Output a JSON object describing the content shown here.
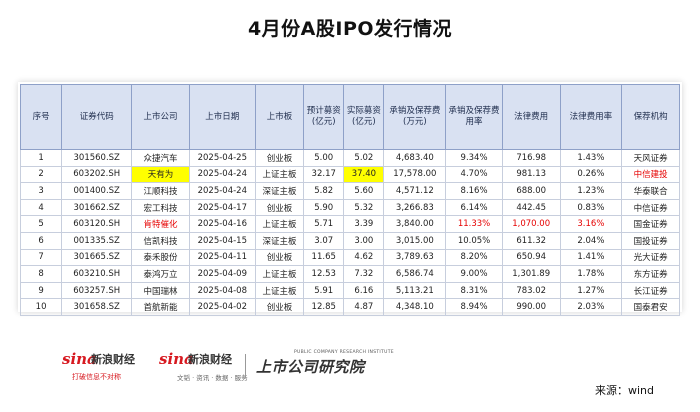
{
  "title": "4月份A股IPO发行情况",
  "table": {
    "headers": [
      "序号",
      "证券代码",
      "上市公司",
      "上市日期",
      "上市板",
      "预计募资\n(亿元)",
      "实际募资\n(亿元)",
      "承销及保荐费\n(万元)",
      "承销及保荐费\n用率",
      "法律费用",
      "法律费用率",
      "保荐机构"
    ],
    "rows": [
      [
        "1",
        "301560.SZ",
        "众捷汽车",
        "2025-04-25",
        "创业板",
        "5.00",
        "5.02",
        "4,683.40",
        "9.34%",
        "716.98",
        "1.43%",
        "天风证券"
      ],
      [
        "2",
        "603202.SH",
        "天有为",
        "2025-04-24",
        "上证主板",
        "32.17",
        "37.40",
        "17,578.00",
        "4.70%",
        "981.13",
        "0.26%",
        "中信建投"
      ],
      [
        "3",
        "001400.SZ",
        "江顺科技",
        "2025-04-24",
        "深证主板",
        "5.82",
        "5.60",
        "4,571.12",
        "8.16%",
        "688.00",
        "1.23%",
        "华泰联合"
      ],
      [
        "4",
        "301662.SZ",
        "宏工科技",
        "2025-04-17",
        "创业板",
        "5.90",
        "5.32",
        "3,266.83",
        "6.14%",
        "442.45",
        "0.83%",
        "中信证券"
      ],
      [
        "5",
        "603120.SH",
        "肯特催化",
        "2025-04-16",
        "上证主板",
        "5.71",
        "3.39",
        "3,840.00",
        "11.33%",
        "1,070.00",
        "3.16%",
        "国金证券"
      ],
      [
        "6",
        "001335.SZ",
        "信凯科技",
        "2025-04-15",
        "深证主板",
        "3.07",
        "3.00",
        "3,015.00",
        "10.05%",
        "611.32",
        "2.04%",
        "国投证券"
      ],
      [
        "7",
        "301665.SZ",
        "泰禾股份",
        "2025-04-11",
        "创业板",
        "11.65",
        "4.62",
        "3,789.63",
        "8.20%",
        "650.94",
        "1.41%",
        "光大证券"
      ],
      [
        "8",
        "603210.SH",
        "泰鸿万立",
        "2025-04-09",
        "上证主板",
        "12.53",
        "7.32",
        "6,586.74",
        "9.00%",
        "1,301.89",
        "1.78%",
        "东方证券"
      ],
      [
        "9",
        "603257.SH",
        "中国瑞林",
        "2025-04-08",
        "上证主板",
        "5.91",
        "6.16",
        "5,113.21",
        "8.31%",
        "783.02",
        "1.27%",
        "长江证券"
      ],
      [
        "10",
        "301658.SZ",
        "首航新能",
        "2025-04-02",
        "创业板",
        "12.85",
        "4.87",
        "4,348.10",
        "8.94%",
        "990.00",
        "2.03%",
        "国泰君安"
      ]
    ]
  },
  "footer": {
    "sina1_logo": "sina",
    "sina1_name": "新浪财经",
    "sina1_tag": "打破信息不对称",
    "sina2_logo": "sina",
    "sina2_name": "新浪财经",
    "sina2_tag": "文韬 · 资讯 · 数据 · 服务",
    "inst_name": "上市公司研究院",
    "inst_en": "PUBLIC COMPANY RESEARCH INSTITUTE",
    "source": "来源：wind"
  },
  "highlight_colors": {
    "yellow": "#ffff00",
    "red": "#e60000"
  }
}
